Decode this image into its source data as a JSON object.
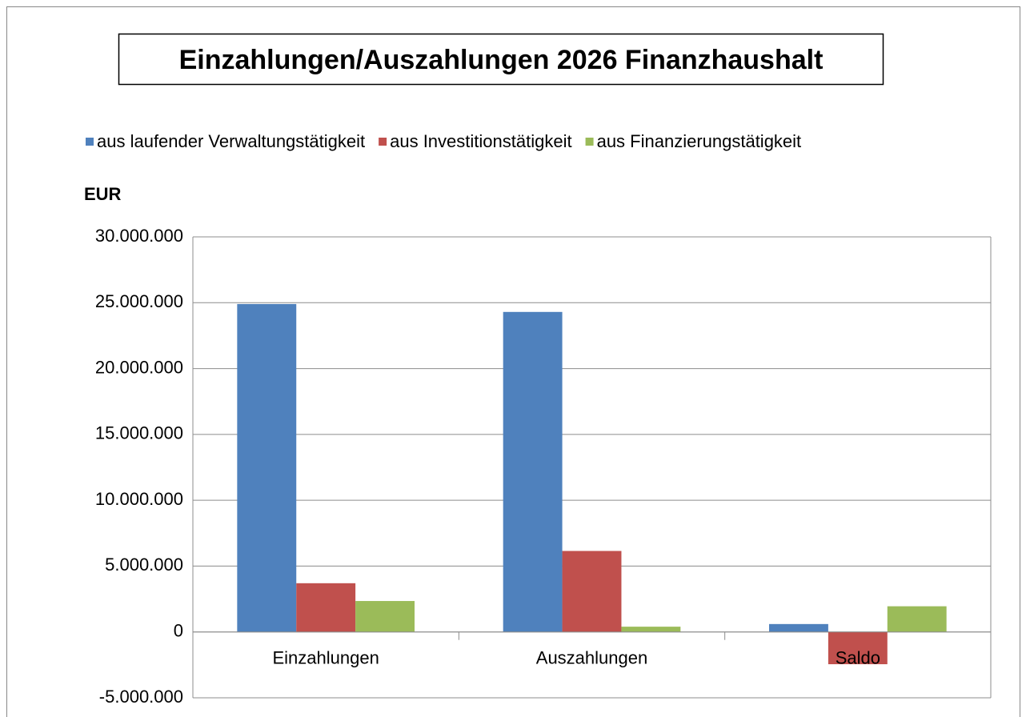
{
  "chart_data": {
    "type": "bar",
    "title": "Einzahlungen/Auszahlungen 2026 Finanzhaushalt",
    "y_axis_label": "EUR",
    "categories": [
      "Einzahlungen",
      "Auszahlungen",
      "Saldo"
    ],
    "series": [
      {
        "name": "aus laufender Verwaltungstätigkeit",
        "color": "#4f81bd",
        "values": [
          24900000,
          24300000,
          600000
        ]
      },
      {
        "name": "aus Investitionstätigkeit",
        "color": "#c0504d",
        "values": [
          3700000,
          6150000,
          -2450000
        ]
      },
      {
        "name": "aus Finanzierungstätigkeit",
        "color": "#9bbb59",
        "values": [
          2350000,
          400000,
          1950000
        ]
      }
    ],
    "ylim": [
      -5000000,
      30000000
    ],
    "yticks": [
      {
        "value": -5000000,
        "label": "-5.000.000"
      },
      0,
      {
        "value": 5000000,
        "label": "5.000.000"
      },
      {
        "value": 10000000,
        "label": "10.000.000"
      },
      {
        "value": 15000000,
        "label": "15.000.000"
      },
      {
        "value": 20000000,
        "label": "20.000.000"
      },
      {
        "value": 25000000,
        "label": "25.000.000"
      },
      {
        "value": 30000000,
        "label": "30.000.000"
      }
    ],
    "grid": true,
    "legend": "top"
  }
}
